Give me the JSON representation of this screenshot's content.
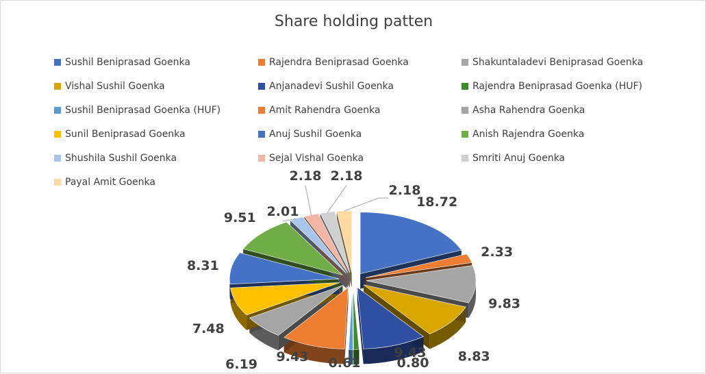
{
  "chart_data": {
    "type": "pie",
    "title": "Share holding patten",
    "legend_position": "top",
    "series": [
      {
        "name": "Sushil Beniprasad Goenka",
        "value": 18.72,
        "label": "18.72",
        "color": "#4472C4"
      },
      {
        "name": "Rajendra Beniprasad Goenka",
        "value": 2.33,
        "label": "2.33",
        "color": "#ED7D31"
      },
      {
        "name": "Shakuntaladevi Beniprasad Goenka",
        "value": 9.83,
        "label": "9.83",
        "color": "#A5A5A5"
      },
      {
        "name": "Vishal Sushil Goenka",
        "value": 8.83,
        "label": "8.83",
        "color": "#D9A600"
      },
      {
        "name": "Anjanadevi Sushil Goenka",
        "value": 9.43,
        "label": "9.43",
        "color": "#2F4FA3"
      },
      {
        "name": "Rajendra Beniprasad Goenka (HUF)",
        "value": 0.8,
        "label": "0.80",
        "color": "#3F8A2E"
      },
      {
        "name": "Sushil Beniprasad Goenka (HUF)",
        "value": 0.61,
        "label": "0.61",
        "color": "#5B9BD5"
      },
      {
        "name": "Amit Rahendra Goenka",
        "value": 9.43,
        "label": "9.43",
        "color": "#ED7D31"
      },
      {
        "name": "Asha Rahendra Goenka",
        "value": 6.19,
        "label": "6.19",
        "color": "#A5A5A5"
      },
      {
        "name": "Sunil Beniprasad Goenka",
        "value": 7.48,
        "label": "7.48",
        "color": "#FFC000"
      },
      {
        "name": "Anuj Sushil Goenka",
        "value": 8.31,
        "label": "8.31",
        "color": "#4472C4"
      },
      {
        "name": "Anish Rajendra Goenka",
        "value": 9.51,
        "label": "9.51",
        "color": "#70AD47"
      },
      {
        "name": "Shushila Sushil Goenka",
        "value": 2.01,
        "label": "2.01",
        "color": "#A9C4EB"
      },
      {
        "name": "Sejal Vishal Goenka",
        "value": 2.18,
        "label": "2.18",
        "color": "#F4B6A4"
      },
      {
        "name": "Smriti Anuj Goenka",
        "value": 2.18,
        "label": "2.18",
        "color": "#D0D0D0"
      },
      {
        "name": "Payal Amit Goenka",
        "value": 2.18,
        "label": "2.18",
        "color": "#FFD9A0"
      }
    ]
  }
}
